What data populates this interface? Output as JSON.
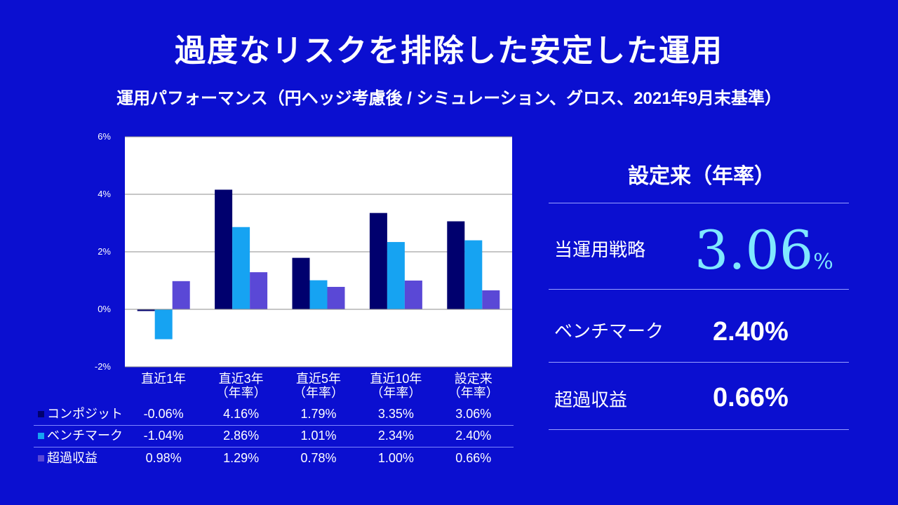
{
  "header": {
    "title": "過度なリスクを排除した安定した運用",
    "subtitle": "運用パフォーマンス（円ヘッジ考慮後 / シミュレーション、グロス、2021年9月末基準）"
  },
  "colors": {
    "background": "#0b0fd0",
    "composite": "#00006e",
    "benchmark": "#16a3f2",
    "excess": "#5a48d6",
    "highlight": "#7fe8ff"
  },
  "chart_data": {
    "type": "bar",
    "categories": [
      "直近1年",
      "直近3年\n（年率）",
      "直近5年\n（年率）",
      "直近10年\n（年率）",
      "設定来\n（年率）"
    ],
    "series": [
      {
        "name": "コンポジット",
        "values": [
          -0.06,
          4.16,
          1.79,
          3.35,
          3.06
        ],
        "labels": [
          "-0.06%",
          "4.16%",
          "1.79%",
          "3.35%",
          "3.06%"
        ]
      },
      {
        "name": "ベンチマーク",
        "values": [
          -1.04,
          2.86,
          1.01,
          2.34,
          2.4
        ],
        "labels": [
          "-1.04%",
          "2.86%",
          "1.01%",
          "2.34%",
          "2.40%"
        ]
      },
      {
        "name": "超過収益",
        "values": [
          0.98,
          1.29,
          0.78,
          1.0,
          0.66
        ],
        "labels": [
          "0.98%",
          "1.29%",
          "0.78%",
          "1.00%",
          "0.66%"
        ]
      }
    ],
    "ylim": [
      -2,
      6
    ],
    "yticks": [
      6,
      4,
      2,
      0,
      -2
    ],
    "ytick_labels": [
      "6%",
      "4%",
      "2%",
      "0%",
      "-2%"
    ],
    "grid": true,
    "legend": "data-table-below"
  },
  "summary": {
    "heading": "設定来（年率）",
    "strategy_label": "当運用戦略",
    "strategy_value": "3.06",
    "strategy_unit": "%",
    "benchmark_label": "ベンチマーク",
    "benchmark_value": "2.40%",
    "excess_label": "超過収益",
    "excess_value": "0.66%"
  }
}
